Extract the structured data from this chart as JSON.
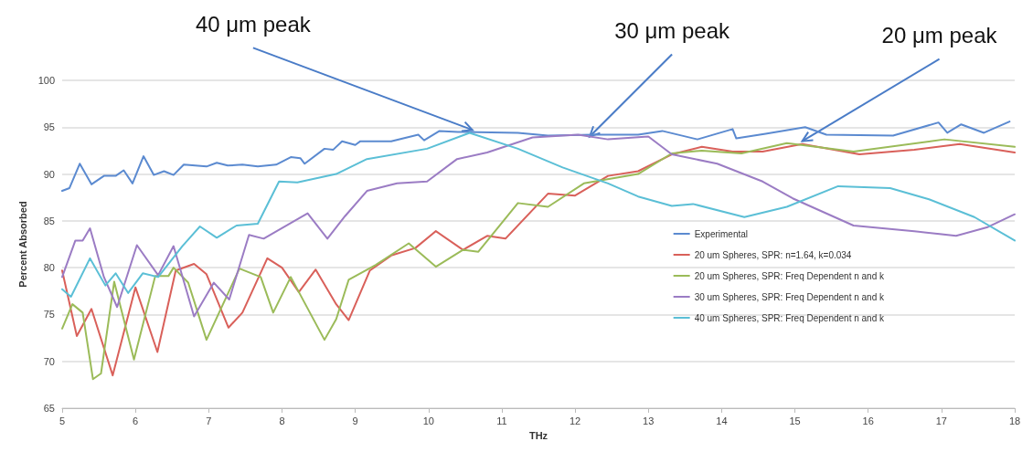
{
  "chart_data": {
    "type": "line",
    "xlabel": "THz",
    "ylabel": "Percent Absorbed",
    "xlim": [
      5,
      18
    ],
    "xticks": [
      5,
      6,
      7,
      8,
      9,
      10,
      11,
      12,
      13,
      14,
      15,
      16,
      17,
      18
    ],
    "ylim": [
      65,
      100
    ],
    "yticks": [
      65,
      70,
      75,
      80,
      85,
      90,
      95,
      100
    ],
    "grid": "y",
    "legend": "right",
    "marker": "none",
    "line_style": "solid",
    "annotations": [
      {
        "text": "40 μm peak",
        "x": 10.6,
        "y": 94.7
      },
      {
        "text": "30 μm peak",
        "x": 12.2,
        "y": 94
      },
      {
        "text": "20 μm peak",
        "x": 15.1,
        "y": 93.5
      }
    ],
    "series": [
      {
        "name": "Experimental",
        "color": "#5b8ad0",
        "x": [
          5,
          5.1,
          5.24,
          5.4,
          5.57,
          5.73,
          5.84,
          5.96,
          6.11,
          6.25,
          6.39,
          6.52,
          6.66,
          6.97,
          7.11,
          7.26,
          7.46,
          7.67,
          7.92,
          8.12,
          8.25,
          8.31,
          8.58,
          8.7,
          8.82,
          9,
          9.07,
          9.49,
          9.86,
          9.94,
          10.15,
          10.4,
          11.22,
          11.63,
          12.25,
          12.86,
          13.19,
          13.67,
          14.15,
          14.2,
          14.6,
          15.14,
          15.43,
          16.34,
          16.96,
          17.08,
          17.27,
          17.58,
          17.93
        ],
        "values": [
          88.2,
          88.5,
          91.1,
          88.9,
          89.8,
          89.8,
          90.4,
          89,
          91.9,
          89.9,
          90.3,
          89.9,
          91,
          90.8,
          91.2,
          90.9,
          91,
          90.8,
          91,
          91.8,
          91.7,
          91.1,
          92.7,
          92.6,
          93.5,
          93.1,
          93.5,
          93.5,
          94.2,
          93.6,
          94.6,
          94.5,
          94.4,
          94.1,
          94.2,
          94.2,
          94.6,
          93.7,
          94.8,
          93.8,
          94.3,
          95,
          94.2,
          94.1,
          95.5,
          94.4,
          95.3,
          94.4,
          95.6
        ]
      },
      {
        "name": "20 um Spheres, SPR: n=1.64, k=0.034",
        "color": "#d9605a",
        "x": [
          5,
          5.2,
          5.4,
          5.69,
          6,
          6.3,
          6.55,
          6.8,
          6.97,
          7.27,
          7.46,
          7.8,
          8,
          8.23,
          8.46,
          8.74,
          8.91,
          9.2,
          9.49,
          9.82,
          10.1,
          10.47,
          10.8,
          11.05,
          11.63,
          12,
          12.45,
          12.86,
          13.32,
          13.73,
          14.15,
          14.56,
          15.1,
          15.88,
          16.63,
          17.25,
          18
        ],
        "values": [
          79.7,
          72.7,
          75.6,
          68.5,
          77.9,
          71,
          79.7,
          80.4,
          79.3,
          73.6,
          75.2,
          81,
          80,
          77.4,
          79.8,
          76.1,
          74.4,
          79.7,
          81.3,
          82.1,
          83.9,
          81.9,
          83.4,
          83.1,
          87.9,
          87.7,
          89.8,
          90.3,
          92.1,
          92.9,
          92.4,
          92.4,
          93.2,
          92.1,
          92.6,
          93.2,
          92.3
        ]
      },
      {
        "name": "20 um Spheres, SPR: Freq Dependent n and k",
        "color": "#9bbb59",
        "x": [
          5,
          5.14,
          5.28,
          5.42,
          5.53,
          5.71,
          5.98,
          6.27,
          6.45,
          6.52,
          6.72,
          6.97,
          7.42,
          7.71,
          7.88,
          8.12,
          8.58,
          8.74,
          8.91,
          9.28,
          9.73,
          10.1,
          10.47,
          10.68,
          11.22,
          11.63,
          12.12,
          12.86,
          13.32,
          13.73,
          14.27,
          14.89,
          15.8,
          17.04,
          18
        ],
        "values": [
          73.5,
          76.1,
          75.2,
          68.1,
          68.7,
          78.5,
          70.2,
          79.1,
          79.1,
          80,
          78.4,
          72.3,
          79.9,
          79,
          75.2,
          79,
          72.3,
          74.5,
          78.7,
          80.3,
          82.6,
          80.1,
          81.9,
          81.7,
          86.9,
          86.5,
          89,
          90,
          92.2,
          92.5,
          92.2,
          93.3,
          92.4,
          93.7,
          92.9
        ]
      },
      {
        "name": "30 um Spheres, SPR: Freq Dependent n and k",
        "color": "#9b7cc4",
        "x": [
          5,
          5.18,
          5.28,
          5.38,
          5.57,
          5.75,
          6.02,
          6.31,
          6.52,
          6.8,
          7.07,
          7.28,
          7.55,
          7.75,
          8.35,
          8.62,
          8.86,
          9.16,
          9.57,
          9.98,
          10.39,
          10.8,
          11.42,
          12.04,
          12.45,
          13,
          13.32,
          13.94,
          14.56,
          14.97,
          15.8,
          16.63,
          17.2,
          17.62,
          18
        ],
        "values": [
          79,
          82.9,
          82.9,
          84.2,
          79,
          75.8,
          82.4,
          79.2,
          82.3,
          74.8,
          78.4,
          76.6,
          83.5,
          83.1,
          85.8,
          83.1,
          85.5,
          88.2,
          89,
          89.2,
          91.6,
          92.3,
          93.9,
          94.2,
          93.7,
          94,
          92.1,
          91.1,
          89.2,
          87.4,
          84.5,
          83.9,
          83.4,
          84.3,
          85.7
        ]
      },
      {
        "name": "40 um Spheres, SPR: Freq Dependent n and k",
        "color": "#5bbfd6",
        "x": [
          5,
          5.12,
          5.38,
          5.59,
          5.73,
          5.9,
          6.1,
          6.31,
          6.64,
          6.88,
          7.11,
          7.38,
          7.67,
          7.96,
          8.21,
          8.74,
          9.16,
          9.98,
          10.56,
          11.22,
          11.83,
          12.45,
          12.86,
          13.32,
          13.61,
          14.31,
          14.89,
          15.59,
          16.3,
          16.83,
          17.45,
          18
        ],
        "values": [
          77.7,
          76.9,
          81,
          78.1,
          79.4,
          77.3,
          79.4,
          79,
          82.3,
          84.4,
          83.2,
          84.5,
          84.7,
          89.2,
          89.1,
          90,
          91.6,
          92.7,
          94.4,
          92.7,
          90.7,
          89,
          87.6,
          86.6,
          86.8,
          85.4,
          86.5,
          88.7,
          88.5,
          87.3,
          85.4,
          82.9
        ]
      }
    ]
  }
}
